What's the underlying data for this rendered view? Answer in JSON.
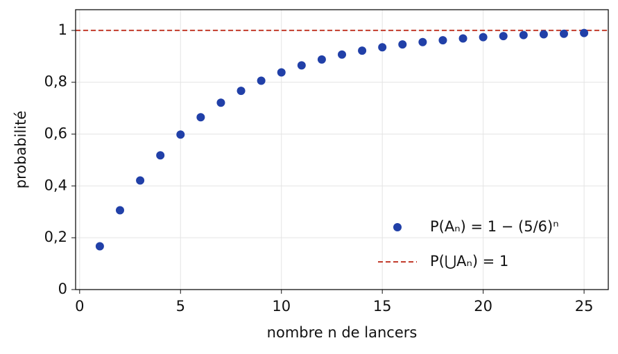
{
  "chart_data": {
    "type": "scatter",
    "xlabel": "nombre n de lancers",
    "ylabel": "probabilité",
    "x": [
      1,
      2,
      3,
      4,
      5,
      6,
      7,
      8,
      9,
      10,
      11,
      12,
      13,
      14,
      15,
      16,
      17,
      18,
      19,
      20,
      21,
      22,
      23,
      24,
      25
    ],
    "series": [
      {
        "name": "P(Aₙ) = 1 − (5/6)ⁿ",
        "color": "#2140a8",
        "values": [
          0.167,
          0.306,
          0.421,
          0.518,
          0.598,
          0.665,
          0.721,
          0.767,
          0.806,
          0.838,
          0.865,
          0.888,
          0.907,
          0.922,
          0.935,
          0.946,
          0.955,
          0.962,
          0.969,
          0.974,
          0.978,
          0.982,
          0.985,
          0.987,
          0.99
        ]
      }
    ],
    "hlines": [
      {
        "name": "P(⋃Aₙ) = 1",
        "color": "#c23b2b",
        "y": 1,
        "style": "dashed"
      }
    ],
    "xlim": [
      -0.2,
      26.2
    ],
    "ylim": [
      0,
      1.08
    ],
    "xticks": [
      0,
      5,
      10,
      15,
      20,
      25
    ],
    "yticks": [
      0,
      {
        "value": 0.2,
        "label": "0,2"
      },
      {
        "value": 0.4,
        "label": "0,4"
      },
      {
        "value": 0.6,
        "label": "0,6"
      },
      {
        "value": 0.8,
        "label": "0,8"
      },
      1
    ],
    "grid": true,
    "legend": "lower right"
  }
}
